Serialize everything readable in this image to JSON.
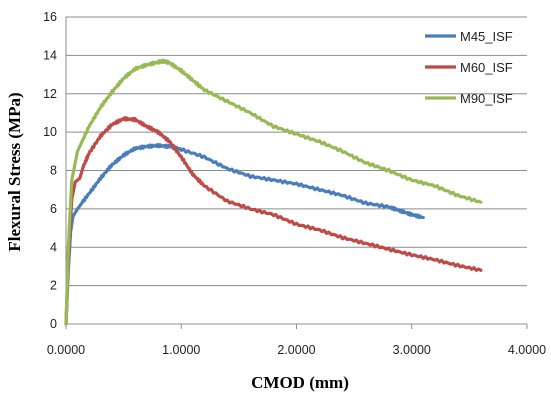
{
  "chart_data": {
    "type": "line",
    "xlabel": "CMOD (mm)",
    "ylabel": "Flexural Stress (MPa)",
    "xlim": [
      0,
      4
    ],
    "ylim": [
      0,
      16
    ],
    "x_ticks": [
      "0.0000",
      "1.0000",
      "2.0000",
      "3.0000",
      "4.0000"
    ],
    "y_ticks": [
      "0",
      "2",
      "4",
      "6",
      "8",
      "10",
      "12",
      "14",
      "16"
    ],
    "grid": "horizontal",
    "legend_position": "top-right",
    "series": [
      {
        "name": "M45_ISF",
        "color": "#4a7ebb",
        "points": [
          [
            0,
            0
          ],
          [
            0.02,
            2.8
          ],
          [
            0.04,
            4.8
          ],
          [
            0.06,
            5.6
          ],
          [
            0.1,
            6.0
          ],
          [
            0.2,
            6.8
          ],
          [
            0.3,
            7.6
          ],
          [
            0.4,
            8.3
          ],
          [
            0.5,
            8.8
          ],
          [
            0.6,
            9.15
          ],
          [
            0.7,
            9.25
          ],
          [
            0.8,
            9.3
          ],
          [
            0.9,
            9.25
          ],
          [
            1.0,
            9.1
          ],
          [
            1.2,
            8.7
          ],
          [
            1.4,
            8.1
          ],
          [
            1.6,
            7.7
          ],
          [
            1.8,
            7.5
          ],
          [
            2.0,
            7.3
          ],
          [
            2.2,
            7.0
          ],
          [
            2.4,
            6.7
          ],
          [
            2.6,
            6.3
          ],
          [
            2.8,
            6.1
          ],
          [
            2.9,
            5.9
          ],
          [
            3.0,
            5.7
          ],
          [
            3.1,
            5.55
          ]
        ]
      },
      {
        "name": "M60_ISF",
        "color": "#be4b48",
        "points": [
          [
            0,
            0
          ],
          [
            0.02,
            3.5
          ],
          [
            0.05,
            6.5
          ],
          [
            0.08,
            7.4
          ],
          [
            0.12,
            7.6
          ],
          [
            0.15,
            8.2
          ],
          [
            0.2,
            8.9
          ],
          [
            0.3,
            9.8
          ],
          [
            0.4,
            10.4
          ],
          [
            0.5,
            10.7
          ],
          [
            0.6,
            10.65
          ],
          [
            0.7,
            10.3
          ],
          [
            0.8,
            10.0
          ],
          [
            0.9,
            9.5
          ],
          [
            1.0,
            8.7
          ],
          [
            1.1,
            7.8
          ],
          [
            1.2,
            7.2
          ],
          [
            1.4,
            6.4
          ],
          [
            1.6,
            6.0
          ],
          [
            1.8,
            5.7
          ],
          [
            2.0,
            5.2
          ],
          [
            2.2,
            4.9
          ],
          [
            2.4,
            4.5
          ],
          [
            2.6,
            4.2
          ],
          [
            2.8,
            3.9
          ],
          [
            3.0,
            3.6
          ],
          [
            3.2,
            3.35
          ],
          [
            3.4,
            3.05
          ],
          [
            3.6,
            2.8
          ]
        ]
      },
      {
        "name": "M90_ISF",
        "color": "#98b954",
        "points": [
          [
            0,
            0
          ],
          [
            0.02,
            4.0
          ],
          [
            0.05,
            7.5
          ],
          [
            0.1,
            9.0
          ],
          [
            0.2,
            10.3
          ],
          [
            0.3,
            11.3
          ],
          [
            0.4,
            12.1
          ],
          [
            0.5,
            12.8
          ],
          [
            0.6,
            13.3
          ],
          [
            0.7,
            13.5
          ],
          [
            0.8,
            13.65
          ],
          [
            0.85,
            13.7
          ],
          [
            0.9,
            13.6
          ],
          [
            1.0,
            13.2
          ],
          [
            1.1,
            12.7
          ],
          [
            1.2,
            12.2
          ],
          [
            1.4,
            11.6
          ],
          [
            1.6,
            11.0
          ],
          [
            1.8,
            10.3
          ],
          [
            2.0,
            9.9
          ],
          [
            2.2,
            9.5
          ],
          [
            2.4,
            9.0
          ],
          [
            2.6,
            8.4
          ],
          [
            2.8,
            8.0
          ],
          [
            3.0,
            7.5
          ],
          [
            3.2,
            7.2
          ],
          [
            3.4,
            6.7
          ],
          [
            3.6,
            6.35
          ]
        ]
      }
    ]
  }
}
